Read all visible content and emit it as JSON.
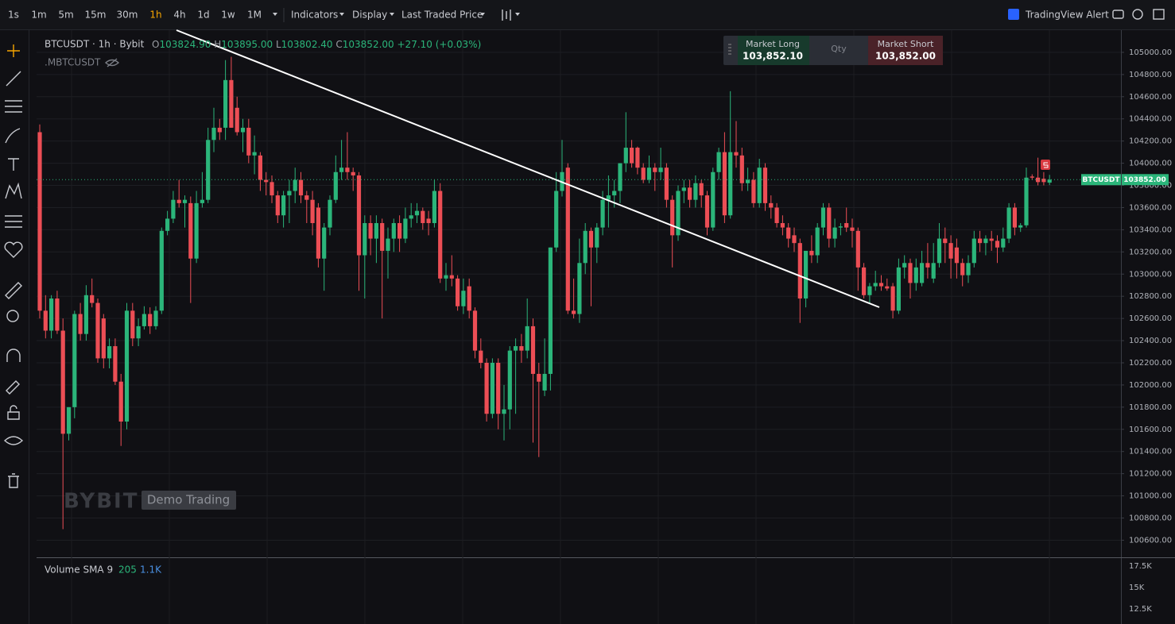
{
  "toolbar": {
    "intervals": [
      "1s",
      "1m",
      "5m",
      "15m",
      "30m",
      "1h",
      "4h",
      "1d",
      "1w",
      "1M"
    ],
    "active": 5,
    "menus": [
      "Indicators",
      "Display",
      "Last Traded Price"
    ],
    "alert": "TradingView Alert"
  },
  "legend": {
    "title": "BTCUSDT · 1h · Bybit",
    "ohlc": [
      {
        "key": "O",
        "value": "103824.90"
      },
      {
        "key": "H",
        "value": "103895.00"
      },
      {
        "key": "L",
        "value": "103802.40"
      },
      {
        "key": "C",
        "value": "103852.00"
      }
    ],
    "change": "+27.10 (+0.03%)",
    "index": ".MBTCUSDT"
  },
  "order_panel": {
    "long_label": "Market Long",
    "long_price": "103,852.10",
    "qty": "Qty",
    "short_label": "Market Short",
    "short_price": "103,852.00"
  },
  "watermark": {
    "brand": "BYBIT",
    "mode": "Demo Trading"
  },
  "price_tag": {
    "symbol": "BTCUSDT",
    "price": "103852.00"
  },
  "volume": {
    "label": "Volume SMA 9",
    "value": "205",
    "sma": "1.1K",
    "axis": [
      "17.5K",
      "15K",
      "12.5K"
    ]
  },
  "chart_data": {
    "type": "candlestick",
    "up_color": "#2bb57a",
    "down_color": "#ec4e55",
    "grid": true,
    "ylim": [
      100460,
      105200
    ],
    "yticks": [
      {
        "value": 105000,
        "label": "105000.00"
      },
      {
        "value": 104800,
        "label": "104800.00"
      },
      {
        "value": 104600,
        "label": "104600.00"
      },
      {
        "value": 104400,
        "label": "104400.00"
      },
      {
        "value": 104200,
        "label": "104200.00"
      },
      {
        "value": 104000,
        "label": "104000.00"
      },
      {
        "value": 103800,
        "label": "103800.00"
      },
      {
        "value": 103600,
        "label": "103600.00"
      },
      {
        "value": 103400,
        "label": "103400.00"
      },
      {
        "value": 103200,
        "label": "103200.00"
      },
      {
        "value": 103000,
        "label": "103000.00"
      },
      {
        "value": 102800,
        "label": "102800.00"
      },
      {
        "value": 102600,
        "label": "102600.00"
      },
      {
        "value": 102400,
        "label": "102400.00"
      },
      {
        "value": 102200,
        "label": "102200.00"
      },
      {
        "value": 102000,
        "label": "102000.00"
      },
      {
        "value": 101800,
        "label": "101800.00"
      },
      {
        "value": 101600,
        "label": "101600.00"
      },
      {
        "value": 101400,
        "label": "101400.00"
      },
      {
        "value": 101200,
        "label": "101200.00"
      },
      {
        "value": 101000,
        "label": "101000.00"
      },
      {
        "value": 100800,
        "label": "100800.00"
      },
      {
        "value": 100600,
        "label": "100600.00"
      }
    ],
    "candles": [
      [
        104280,
        104350,
        102600,
        102670
      ],
      [
        102670,
        102810,
        102420,
        102490
      ],
      [
        102490,
        102810,
        102420,
        102780
      ],
      [
        102780,
        102850,
        102460,
        102490
      ],
      [
        102490,
        102600,
        100700,
        101560
      ],
      [
        101560,
        101800,
        101500,
        101800
      ],
      [
        101800,
        102670,
        101700,
        102640
      ],
      [
        102640,
        102740,
        102400,
        102460
      ],
      [
        102460,
        102900,
        102400,
        102810
      ],
      [
        102810,
        102960,
        102700,
        102740
      ],
      [
        102740,
        102780,
        102200,
        102240
      ],
      [
        102600,
        102640,
        102150,
        102240
      ],
      [
        102240,
        102420,
        102150,
        102350
      ],
      [
        102350,
        102420,
        102000,
        102030
      ],
      [
        102030,
        102100,
        101450,
        101670
      ],
      [
        101670,
        102740,
        101600,
        102670
      ],
      [
        102670,
        102740,
        102350,
        102420
      ],
      [
        102420,
        102600,
        102350,
        102530
      ],
      [
        102530,
        102710,
        102500,
        102640
      ],
      [
        102640,
        102700,
        102460,
        102530
      ],
      [
        102530,
        102710,
        102500,
        102670
      ],
      [
        102670,
        103420,
        102640,
        103390
      ],
      [
        103390,
        103570,
        103350,
        103500
      ],
      [
        103500,
        103750,
        103460,
        103670
      ],
      [
        103670,
        103850,
        103600,
        103640
      ],
      [
        103640,
        103710,
        103420,
        103670
      ],
      [
        103640,
        103700,
        102740,
        103140
      ],
      [
        103140,
        103750,
        103100,
        103640
      ],
      [
        103640,
        103920,
        103600,
        103670
      ],
      [
        103670,
        104320,
        103640,
        104210
      ],
      [
        104210,
        104500,
        104100,
        104320
      ],
      [
        104320,
        104400,
        104210,
        104280
      ],
      [
        104320,
        104930,
        104210,
        104750
      ],
      [
        104750,
        104960,
        104320,
        104320
      ],
      [
        104500,
        104600,
        104250,
        104280
      ],
      [
        104280,
        104400,
        104100,
        104320
      ],
      [
        104320,
        104400,
        104000,
        104070
      ],
      [
        104070,
        104250,
        103900,
        104100
      ],
      [
        104070,
        104100,
        103750,
        103850
      ],
      [
        103850,
        103920,
        103710,
        103830
      ],
      [
        103830,
        103890,
        103640,
        103710
      ],
      [
        103710,
        103750,
        103460,
        103530
      ],
      [
        103530,
        103750,
        103420,
        103710
      ],
      [
        103710,
        103850,
        103460,
        103750
      ],
      [
        103750,
        103960,
        103640,
        103850
      ],
      [
        103850,
        103920,
        103640,
        103710
      ],
      [
        103710,
        103750,
        103460,
        103670
      ],
      [
        103670,
        103750,
        103350,
        103460
      ],
      [
        103600,
        103640,
        103060,
        103140
      ],
      [
        103140,
        103460,
        102850,
        103420
      ],
      [
        103420,
        103710,
        103350,
        103670
      ],
      [
        103670,
        104070,
        103640,
        103920
      ],
      [
        103920,
        104210,
        103850,
        103960
      ],
      [
        103960,
        104280,
        103850,
        103920
      ],
      [
        103920,
        103960,
        103750,
        103890
      ],
      [
        103890,
        103920,
        102850,
        103170
      ],
      [
        103170,
        103530,
        102780,
        103460
      ],
      [
        103460,
        103530,
        103170,
        103320
      ],
      [
        103320,
        103530,
        103100,
        103460
      ],
      [
        103460,
        103500,
        102600,
        103210
      ],
      [
        103210,
        103420,
        102960,
        103320
      ],
      [
        103320,
        103500,
        103200,
        103460
      ],
      [
        103460,
        103530,
        103200,
        103320
      ],
      [
        103320,
        103600,
        103280,
        103500
      ],
      [
        103500,
        103640,
        103420,
        103530
      ],
      [
        103530,
        103640,
        103460,
        103570
      ],
      [
        103570,
        103600,
        103400,
        103460
      ],
      [
        103500,
        103570,
        103350,
        103460
      ],
      [
        103460,
        103850,
        103420,
        103750
      ],
      [
        103750,
        103820,
        102920,
        102960
      ],
      [
        102960,
        103100,
        102850,
        102990
      ],
      [
        102990,
        103170,
        102890,
        102960
      ],
      [
        102960,
        102990,
        102670,
        102710
      ],
      [
        102710,
        102960,
        102640,
        102850
      ],
      [
        102890,
        102960,
        102600,
        102670
      ],
      [
        102670,
        102700,
        102240,
        102310
      ],
      [
        102310,
        102420,
        102150,
        102200
      ],
      [
        102200,
        102240,
        101670,
        101740
      ],
      [
        101740,
        102240,
        101700,
        102200
      ],
      [
        102200,
        102240,
        101600,
        101740
      ],
      [
        101740,
        102000,
        101500,
        101780
      ],
      [
        101780,
        102350,
        101600,
        102310
      ],
      [
        102310,
        102420,
        101740,
        102350
      ],
      [
        102350,
        102460,
        102200,
        102310
      ],
      [
        102310,
        102780,
        102240,
        102530
      ],
      [
        102530,
        102600,
        101480,
        102100
      ],
      [
        102100,
        102200,
        101350,
        102030
      ],
      [
        101950,
        102420,
        101900,
        102100
      ],
      [
        102100,
        103240,
        101950,
        103240
      ],
      [
        103240,
        103920,
        103200,
        103750
      ],
      [
        103750,
        104210,
        103700,
        103920
      ],
      [
        103960,
        104000,
        102640,
        102670
      ],
      [
        102670,
        102960,
        102600,
        102640
      ],
      [
        102640,
        103320,
        102560,
        103100
      ],
      [
        103100,
        103460,
        103000,
        103390
      ],
      [
        103390,
        103420,
        102710,
        103240
      ],
      [
        103240,
        103460,
        103100,
        103420
      ],
      [
        103420,
        103750,
        103350,
        103670
      ],
      [
        103670,
        103890,
        103420,
        103710
      ],
      [
        103710,
        103850,
        103600,
        103750
      ],
      [
        103750,
        104000,
        103640,
        104000
      ],
      [
        104000,
        104460,
        103920,
        104140
      ],
      [
        104140,
        104210,
        103960,
        104000
      ],
      [
        104140,
        104150,
        103900,
        103960
      ],
      [
        103960,
        104000,
        103820,
        103850
      ],
      [
        103850,
        104070,
        103820,
        103960
      ],
      [
        103960,
        104000,
        103750,
        103920
      ],
      [
        103920,
        104140,
        103850,
        103960
      ],
      [
        103960,
        104000,
        103600,
        103670
      ],
      [
        103670,
        103710,
        103060,
        103350
      ],
      [
        103350,
        103800,
        103300,
        103750
      ],
      [
        103750,
        103850,
        103640,
        103780
      ],
      [
        103780,
        103850,
        103600,
        103670
      ],
      [
        103670,
        103890,
        103600,
        103820
      ],
      [
        103820,
        103850,
        103600,
        103710
      ],
      [
        103710,
        103750,
        103350,
        103420
      ],
      [
        103420,
        103960,
        103390,
        103920
      ],
      [
        103920,
        104140,
        103850,
        104100
      ],
      [
        104100,
        104280,
        103460,
        103530
      ],
      [
        103530,
        104650,
        103500,
        104100
      ],
      [
        104100,
        104380,
        103960,
        104070
      ],
      [
        104070,
        104140,
        103750,
        103820
      ],
      [
        103820,
        103960,
        103750,
        103850
      ],
      [
        103850,
        103920,
        103600,
        103640
      ],
      [
        103640,
        104040,
        103600,
        103960
      ],
      [
        103960,
        104000,
        103570,
        103640
      ],
      [
        103640,
        103710,
        103500,
        103600
      ],
      [
        103600,
        103640,
        103420,
        103460
      ],
      [
        103460,
        103530,
        103350,
        103420
      ],
      [
        103420,
        103460,
        103240,
        103320
      ],
      [
        103350,
        103420,
        103200,
        103280
      ],
      [
        103280,
        103320,
        102560,
        102780
      ],
      [
        102780,
        103200,
        102700,
        103210
      ],
      [
        103210,
        103350,
        103100,
        103170
      ],
      [
        103170,
        103460,
        103100,
        103420
      ],
      [
        103420,
        103640,
        103350,
        103600
      ],
      [
        103600,
        103640,
        103240,
        103320
      ],
      [
        103320,
        103500,
        103240,
        103420
      ],
      [
        103420,
        103460,
        103350,
        103430
      ],
      [
        103460,
        103600,
        103380,
        103420
      ],
      [
        103420,
        103500,
        103240,
        103390
      ],
      [
        103390,
        103420,
        102850,
        103060
      ],
      [
        103060,
        103100,
        102780,
        102810
      ],
      [
        102810,
        102920,
        102740,
        102890
      ],
      [
        102890,
        103030,
        102850,
        102920
      ],
      [
        102920,
        102990,
        102850,
        102890
      ],
      [
        102890,
        102960,
        102850,
        102870
      ],
      [
        102890,
        102920,
        102600,
        102670
      ],
      [
        102670,
        103140,
        102640,
        103060
      ],
      [
        103060,
        103170,
        102960,
        103100
      ],
      [
        103100,
        103140,
        102780,
        102920
      ],
      [
        102920,
        103140,
        102850,
        103060
      ],
      [
        102920,
        103210,
        102890,
        103100
      ],
      [
        103100,
        103280,
        102960,
        103060
      ],
      [
        102960,
        103280,
        102920,
        103100
      ],
      [
        103100,
        103460,
        103060,
        103320
      ],
      [
        103320,
        103420,
        103100,
        103280
      ],
      [
        103280,
        103350,
        102960,
        103140
      ],
      [
        103240,
        103320,
        102960,
        103100
      ],
      [
        103100,
        103140,
        102890,
        102990
      ],
      [
        102990,
        103170,
        102920,
        103100
      ],
      [
        103100,
        103390,
        103060,
        103320
      ],
      [
        103320,
        103390,
        103200,
        103280
      ],
      [
        103280,
        103350,
        103170,
        103320
      ],
      [
        103320,
        103390,
        103210,
        103300
      ],
      [
        103300,
        103350,
        103100,
        103240
      ],
      [
        103240,
        103420,
        103200,
        103320
      ],
      [
        103320,
        103640,
        103280,
        103600
      ],
      [
        103600,
        103640,
        103350,
        103420
      ],
      [
        103420,
        103460,
        103380,
        103440
      ],
      [
        103440,
        103960,
        103420,
        103870
      ],
      [
        103880,
        103900,
        103850,
        103870
      ],
      [
        103870,
        104050,
        103800,
        103830
      ],
      [
        103860,
        103920,
        103800,
        103830
      ],
      [
        103824.9,
        103895,
        103802.4,
        103852
      ]
    ]
  }
}
